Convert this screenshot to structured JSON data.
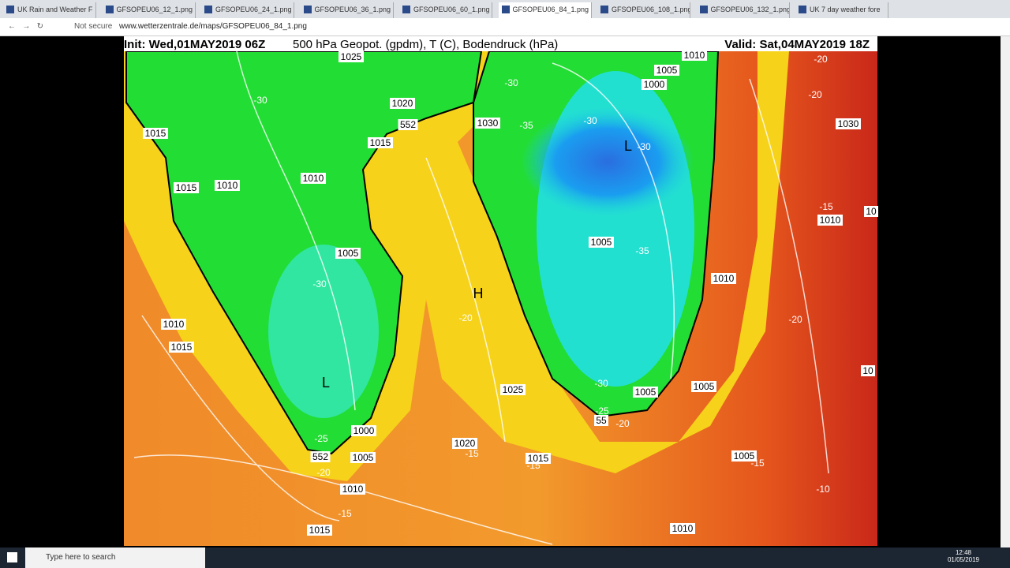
{
  "tabs": [
    "UK Rain and Weather F",
    "GFSOPEU06_12_1.png",
    "GFSOPEU06_24_1.png",
    "GFSOPEU06_36_1.png",
    "GFSOPEU06_60_1.png",
    "GFSOPEU06_84_1.png",
    "GFSOPEU06_108_1.png",
    "GFSOPEU06_132_1.png",
    "UK 7 day weather fore"
  ],
  "address": {
    "security": "Not secure",
    "url": "www.wetterzentrale.de/maps/GFSOPEU06_84_1.png"
  },
  "map": {
    "header": {
      "init": "Init: Wed,01MAY2019 06Z",
      "fields": "500 hPa Geopot. (gpdm), T (C), Bodendruck (hPa)",
      "valid": "Valid: Sat,04MAY2019 18Z"
    },
    "labels": [
      "1025",
      "1010",
      "1005",
      "1000",
      "-20",
      "1020",
      "-30",
      "-30",
      "-20",
      "552",
      "1030",
      "-35",
      "-30",
      "1030",
      "1015",
      "1015",
      "L",
      "-30",
      "1015",
      "1010",
      "1010",
      "-15",
      "1010",
      "10",
      "1005",
      "-35",
      "1005",
      "1010",
      "-30",
      "H",
      "-20",
      "-20",
      "1010",
      "1015",
      "L",
      "1025",
      "-30",
      "1005",
      "1005",
      "10",
      "-25",
      "55",
      "-20",
      "1000",
      "-25",
      "1020",
      "-15",
      "552",
      "1005",
      "1015",
      "1005",
      "-15",
      "-20",
      "-15",
      "1010",
      "-10",
      "-15",
      "1010",
      "1015"
    ]
  },
  "taskbar": {
    "search": "Type here to search",
    "time": "12:48",
    "date": "01/05/2019"
  }
}
